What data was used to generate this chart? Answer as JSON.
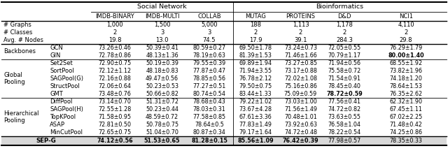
{
  "title_social": "Social Network",
  "title_bio": "Bioinformatics",
  "col_headers": [
    "IMDB-BINARY",
    "IMDB-MULTI",
    "COLLAB",
    "MUTAG",
    "PROTEINS",
    "D&D",
    "NCI1"
  ],
  "stat_rows": [
    [
      "# Graphs",
      "1,000",
      "1,500",
      "5,000",
      "188",
      "1,113",
      "1,178",
      "4,110"
    ],
    [
      "# Classes",
      "2",
      "3",
      "3",
      "2",
      "2",
      "2",
      "2"
    ],
    [
      "Avg. # Nodes",
      "19.8",
      "13.0",
      "74.5",
      "17.9",
      "39.1",
      "284.3",
      "29.8"
    ]
  ],
  "backbone_label": "Backbones",
  "backbone_rows": [
    [
      "GCN",
      "73.26±0.46",
      "50.39±0.41",
      "80.59±0.27",
      "69.50±1.78",
      "73.24±0.73",
      "72.05±0.55",
      "76.29±1.79"
    ],
    [
      "GIN",
      "72.78±0.86",
      "48.13±1.36",
      "78.19±0.63",
      "81.39±1.53",
      "71.46±1.66",
      "70.79±1.17",
      "80.00±1.40"
    ]
  ],
  "global_label": "Global\nPooling",
  "global_rows": [
    [
      "Set2Set",
      "72.90±0.75",
      "50.19±0.39",
      "79.55±0.39",
      "69.89±1.94",
      "73.27±0.85",
      "71.94±0.56",
      "68.55±1.92"
    ],
    [
      "SortPool",
      "72.12±1.12",
      "48.18±0.83",
      "77.87±0.47",
      "71.94±3.55",
      "73.17±0.88",
      "75.58±0.72",
      "73.82±1.96"
    ],
    [
      "SAGPool(G)",
      "72.16±0.88",
      "49.47±0.56",
      "78.85±0.56",
      "76.78±2.12",
      "72.02±1.08",
      "71.54±0.91",
      "74.18±1.20"
    ],
    [
      "StructPool",
      "72.06±0.64",
      "50.23±0.53",
      "77.27±0.51",
      "79.50±0.75",
      "75.16±0.86",
      "78.45±0.40",
      "78.64±1.53"
    ],
    [
      "GMT",
      "73.48±0.76",
      "50.66±0.82",
      "80.74±0.54",
      "83.44±1.33",
      "75.09±0.59",
      "78.72±0.59",
      "76.35±2.62"
    ]
  ],
  "hier_label": "Hierarchical\nPooling",
  "hier_rows": [
    [
      "DiffPool",
      "73.14±0.70",
      "51.31±0.72",
      "78.68±0.43",
      "79.22±1.02",
      "73.03±1.00",
      "77.56±0.41",
      "62.32±1.90"
    ],
    [
      "SAGPool(H)",
      "72.55±1.28",
      "50.23±0.44",
      "78.03±0.31",
      "73.67±4.28",
      "71.56±1.49",
      "74.72±0.82",
      "67.45±1.11"
    ],
    [
      "TopKPool",
      "71.58±0.95",
      "48.59±0.72",
      "77.58±0.85",
      "67.61±3.36",
      "70.48±1.01",
      "73.63±0.55",
      "67.02±2.25"
    ],
    [
      "ASAP",
      "72.81±0.50",
      "50.78±0.75",
      "78.64±0.5",
      "77.83±1.49",
      "73.92±0.63",
      "76.58±1.04",
      "71.48±0.42"
    ],
    [
      "MinCutPool",
      "72.65±0.75",
      "51.04±0.70",
      "80.87±0.34",
      "79.17±1.64",
      "74.72±0.48",
      "78.22±0.54",
      "74.25±0.86"
    ]
  ],
  "sepg_row": [
    "SEP-G",
    "74.12±0.56",
    "51.53±0.65",
    "81.28±0.15",
    "85.56±1.09",
    "76.42±0.39",
    "77.98±0.57",
    "78.35±0.33"
  ],
  "sepg_bold": [
    true,
    true,
    true,
    true,
    true,
    false,
    false
  ],
  "gin_bold_col": 6,
  "gmt_bold_col": 5,
  "bg_color": "#ffffff",
  "sepg_bg": "#d8d8d8",
  "font_size_header": 6.5,
  "font_size_data": 5.8,
  "font_size_group": 6.2
}
